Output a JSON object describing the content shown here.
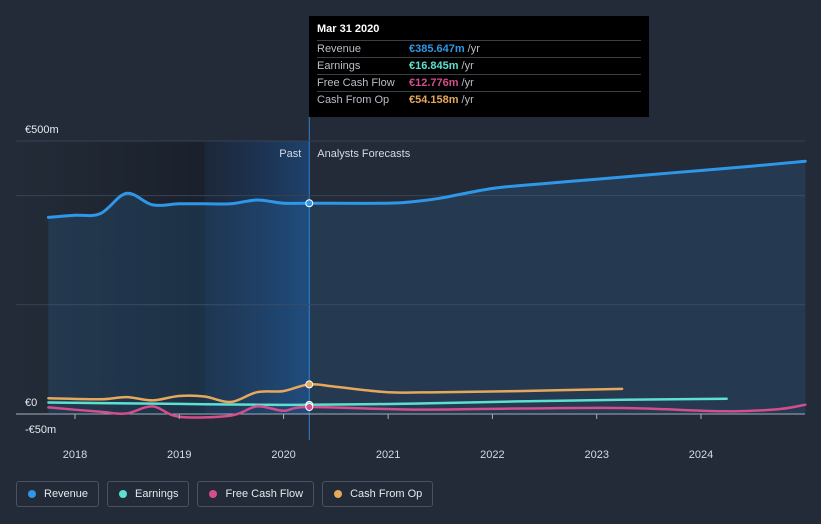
{
  "chart_data": {
    "type": "line",
    "x_ticks": [
      "2018",
      "2019",
      "2020",
      "2021",
      "2022",
      "2023",
      "2024"
    ],
    "y_labels": [
      "€500m",
      "€0",
      "-€50m"
    ],
    "ylim": [
      -50,
      500
    ],
    "region_labels": {
      "past": "Past",
      "forecast": "Analysts Forecasts"
    },
    "divider_date": "2020-03-31",
    "series": [
      {
        "name": "Revenue",
        "color": "#2f97e7",
        "points": [
          [
            "2017-09-30",
            360
          ],
          [
            "2017-12-31",
            364
          ],
          [
            "2018-03-31",
            367
          ],
          [
            "2018-06-30",
            404
          ],
          [
            "2018-09-30",
            383
          ],
          [
            "2018-12-31",
            385
          ],
          [
            "2019-03-31",
            385
          ],
          [
            "2019-06-30",
            385
          ],
          [
            "2019-09-30",
            392
          ],
          [
            "2019-12-31",
            386
          ],
          [
            "2020-03-31",
            386
          ],
          [
            "2020-12-31",
            386
          ],
          [
            "2021-03-31",
            389
          ],
          [
            "2021-06-30",
            395
          ],
          [
            "2021-12-31",
            413
          ],
          [
            "2022-06-30",
            422
          ],
          [
            "2022-12-31",
            430
          ],
          [
            "2023-06-30",
            438
          ],
          [
            "2023-12-31",
            446
          ],
          [
            "2024-06-30",
            454
          ],
          [
            "2024-12-31",
            463
          ]
        ]
      },
      {
        "name": "Earnings",
        "color": "#5de0d0",
        "points": [
          [
            "2017-09-30",
            21
          ],
          [
            "2018-03-31",
            20
          ],
          [
            "2018-09-30",
            19
          ],
          [
            "2019-03-31",
            18
          ],
          [
            "2019-09-30",
            17
          ],
          [
            "2020-03-31",
            16.8
          ],
          [
            "2021-03-31",
            19
          ],
          [
            "2022-03-31",
            23
          ],
          [
            "2023-03-31",
            26
          ],
          [
            "2024-03-31",
            28
          ]
        ]
      },
      {
        "name": "Free Cash Flow",
        "color": "#d44d8c",
        "points": [
          [
            "2017-09-30",
            12
          ],
          [
            "2018-03-31",
            4
          ],
          [
            "2018-06-30",
            1
          ],
          [
            "2018-09-30",
            14
          ],
          [
            "2018-12-31",
            -5
          ],
          [
            "2019-06-30",
            -3
          ],
          [
            "2019-09-30",
            14
          ],
          [
            "2019-12-31",
            6
          ],
          [
            "2020-03-31",
            12.8
          ],
          [
            "2021-03-31",
            8
          ],
          [
            "2022-03-31",
            10
          ],
          [
            "2023-03-31",
            11
          ],
          [
            "2024-03-31",
            5
          ],
          [
            "2024-09-30",
            9
          ],
          [
            "2024-12-31",
            17
          ]
        ]
      },
      {
        "name": "Cash From Op",
        "color": "#e6a85b",
        "points": [
          [
            "2017-09-30",
            29
          ],
          [
            "2018-03-31",
            27
          ],
          [
            "2018-06-30",
            31
          ],
          [
            "2018-09-30",
            25
          ],
          [
            "2018-12-31",
            33
          ],
          [
            "2019-03-31",
            32
          ],
          [
            "2019-06-30",
            22
          ],
          [
            "2019-09-30",
            40
          ],
          [
            "2019-12-31",
            42
          ],
          [
            "2020-03-31",
            54.2
          ],
          [
            "2020-06-30",
            50
          ],
          [
            "2020-12-31",
            40
          ],
          [
            "2021-06-30",
            40
          ],
          [
            "2022-03-31",
            42
          ],
          [
            "2023-03-31",
            46
          ]
        ]
      }
    ]
  },
  "tooltip": {
    "date": "Mar 31 2020",
    "rows": [
      {
        "label": "Revenue",
        "value": "€385.647m",
        "unit": "/yr",
        "color": "#2f97e7"
      },
      {
        "label": "Earnings",
        "value": "€16.845m",
        "unit": "/yr",
        "color": "#5de0d0"
      },
      {
        "label": "Free Cash Flow",
        "value": "€12.776m",
        "unit": "/yr",
        "color": "#d44d8c"
      },
      {
        "label": "Cash From Op",
        "value": "€54.158m",
        "unit": "/yr",
        "color": "#e6a85b"
      }
    ]
  },
  "legend": [
    {
      "label": "Revenue",
      "color": "#2f97e7"
    },
    {
      "label": "Earnings",
      "color": "#5de0d0"
    },
    {
      "label": "Free Cash Flow",
      "color": "#d44d8c"
    },
    {
      "label": "Cash From Op",
      "color": "#e6a85b"
    }
  ]
}
